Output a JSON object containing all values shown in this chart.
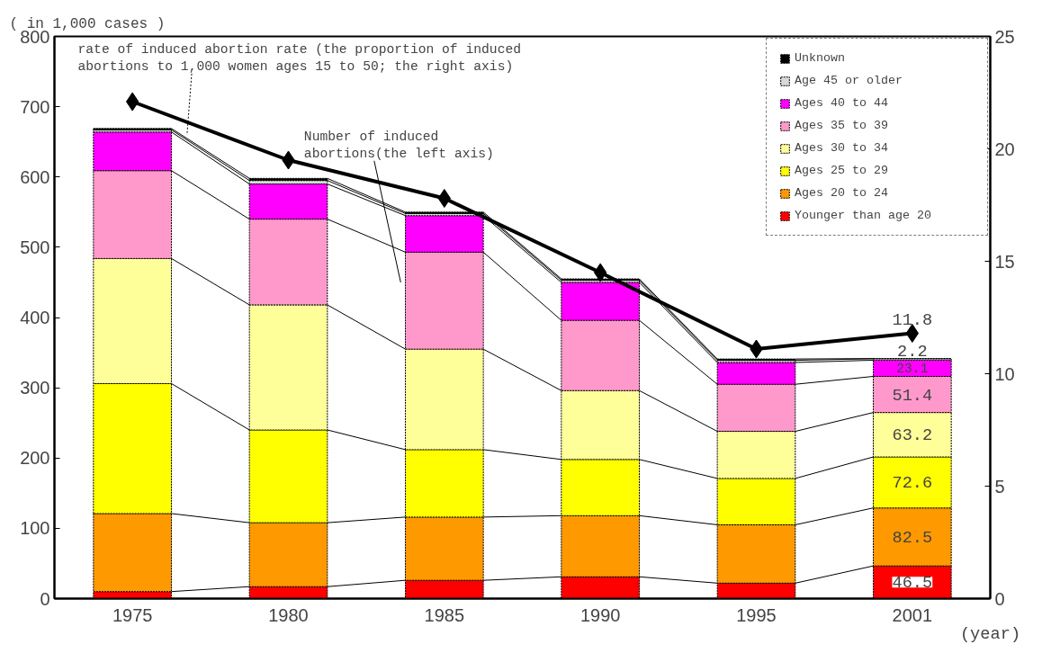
{
  "chart_data": {
    "type": "bar",
    "stacked": true,
    "categories": [
      "1975",
      "1980",
      "1985",
      "1990",
      "1995",
      "2001"
    ],
    "ylabel": "( in 1,000 cases )",
    "xlabel": "(year)",
    "ylim": [
      0,
      800
    ],
    "yticks": [
      0,
      100,
      200,
      300,
      400,
      500,
      600,
      700,
      800
    ],
    "y2lim": [
      0,
      25
    ],
    "y2ticks": [
      0,
      5,
      10,
      15,
      20,
      25
    ],
    "grid": false,
    "legend": "top right",
    "annotations": [
      "rate of induced abortion rate (the proportion of induced\nabortions to 1,000 women ages 15 to 50; the right axis)",
      "Number of induced\nabortions(the left axis)"
    ],
    "series": [
      {
        "name": "Younger than age 20",
        "color": "#ff0000",
        "values": [
          10,
          17,
          26,
          31,
          22,
          46.5
        ],
        "value_labels": [
          null,
          null,
          null,
          null,
          null,
          "46.5"
        ]
      },
      {
        "name": "Ages 20 to 24",
        "color": "#ff9900",
        "values": [
          111,
          91,
          90,
          87,
          83,
          82.5
        ],
        "value_labels": [
          null,
          null,
          null,
          null,
          null,
          "82.5"
        ]
      },
      {
        "name": "Ages 25 to 29",
        "color": "#ffff00",
        "values": [
          185,
          132,
          96,
          80,
          66,
          72.6
        ],
        "value_labels": [
          null,
          null,
          null,
          null,
          null,
          "72.6"
        ]
      },
      {
        "name": "Ages 30 to 34",
        "color": "#ffff99",
        "values": [
          178,
          178,
          143,
          98,
          67,
          63.2
        ],
        "value_labels": [
          null,
          null,
          null,
          null,
          null,
          "63.2"
        ]
      },
      {
        "name": "Ages 35 to 39",
        "color": "#ff99cc",
        "values": [
          125,
          122,
          138,
          100,
          67,
          51.4
        ],
        "value_labels": [
          null,
          null,
          null,
          null,
          null,
          "51.4"
        ]
      },
      {
        "name": "Ages 40 to 44",
        "color": "#ff00ff",
        "values": [
          55,
          50,
          52,
          54,
          31,
          23.1
        ],
        "value_labels": [
          null,
          null,
          null,
          null,
          null,
          "23.1"
        ]
      },
      {
        "name": "Age 45 or older",
        "color": "#d9d9d9",
        "values": [
          3,
          5,
          3,
          3,
          3,
          2.2
        ],
        "value_labels": [
          null,
          null,
          null,
          null,
          null,
          "2.2"
        ]
      },
      {
        "name": "Unknown",
        "color": "#000000",
        "values": [
          2,
          3,
          2,
          2,
          2,
          null
        ]
      },
      {
        "type": "line",
        "axis": "y2",
        "color": "#000000",
        "marker": "diamond",
        "values": [
          22.1,
          19.5,
          17.8,
          14.5,
          11.1,
          11.8
        ],
        "value_labels": [
          null,
          null,
          null,
          null,
          null,
          "11.8"
        ]
      }
    ]
  }
}
